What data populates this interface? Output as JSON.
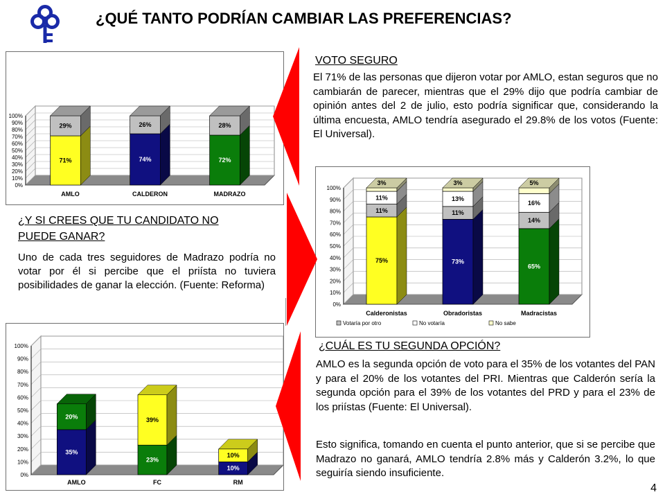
{
  "page": {
    "title": "¿QUÉ TANTO PODRÍAN CAMBIAR LAS PREFERENCIAS?",
    "page_number": "4",
    "colors": {
      "yellow": "#ffff22",
      "navy": "#101080",
      "green": "#0a7d0a",
      "grey": "#c0c0c0",
      "white": "#ffffff",
      "arrow": "#ff0000"
    }
  },
  "sections": {
    "voto_seguro": {
      "heading": "VOTO SEGURO",
      "text": "El 71% de las personas que dijeron votar por AMLO, estan seguros que no cambiarán de parecer, mientras que el 29% dijo que podría cambiar de opinión antes del 2 de julio, esto podría significar que, considerando la última encuesta, AMLO tendría asegurado el 29.8% de los votos (Fuente: El Universal)."
    },
    "no_puede_ganar": {
      "heading_line1": "¿Y SI CREES QUE TU CANDIDATO NO",
      "heading_line2": "PUEDE GANAR?",
      "text": "Uno de cada tres seguidores de Madrazo podría no votar por él si percibe que el priísta no tuviera posibilidades de ganar la elección. (Fuente: Reforma)"
    },
    "segunda_opcion": {
      "heading": "¿CUÁL ES TU SEGUNDA OPCIÓN?",
      "text1": "AMLO es la segunda opción de voto para el 35% de los votantes del PAN y para el 20% de los votantes del PRI. Mientras que Calderón sería la segunda opción para el 39% de los votantes del PRD y para el 23% de los priístas (Fuente: El Universal).",
      "text2": "Esto significa, tomando en cuenta el punto anterior, que si se percibe que Madrazo no ganará, AMLO tendría 2.8% más y Calderón 3.2%, lo que seguiría siendo insuficiente."
    }
  },
  "chart_data": [
    {
      "type": "bar",
      "stacked": true,
      "categories": [
        "AMLO",
        "CALDERON",
        "MADRAZO"
      ],
      "bottom_colors": [
        "#ffff22",
        "#101080",
        "#0a7d0a"
      ],
      "series": [
        {
          "values": [
            71,
            74,
            72
          ],
          "labels": [
            "71%",
            "74%",
            "72%"
          ]
        },
        {
          "values": [
            29,
            26,
            28
          ],
          "labels": [
            "29%",
            "26%",
            "28%"
          ],
          "color": "#c0c0c0"
        }
      ],
      "ylim": [
        0,
        100
      ],
      "yticks": [
        "0%",
        "10%",
        "20%",
        "30%",
        "40%",
        "50%",
        "60%",
        "70%",
        "80%",
        "90%",
        "100%"
      ]
    },
    {
      "type": "bar",
      "stacked": true,
      "categories": [
        "Calderonistas",
        "Obradoristas",
        "Madracistas"
      ],
      "bottom_colors": [
        "#ffff22",
        "#101080",
        "#0a7d0a"
      ],
      "series": [
        {
          "values": [
            75,
            73,
            65
          ],
          "labels": [
            "75%",
            "73%",
            "65%"
          ]
        },
        {
          "name": "Votaría por otro",
          "values": [
            11,
            11,
            14
          ],
          "labels": [
            "11%",
            "11%",
            "14%"
          ],
          "color": "#c0c0c0"
        },
        {
          "name": "No votaría",
          "values": [
            11,
            13,
            16
          ],
          "labels": [
            "11%",
            "13%",
            "16%"
          ],
          "color": "#ffffff"
        },
        {
          "name": "No sabe",
          "values": [
            3,
            3,
            5
          ],
          "labels": [
            "3%",
            "3%",
            "5%"
          ],
          "color": "#ffffcc"
        }
      ],
      "ylim": [
        0,
        100
      ],
      "yticks": [
        "0%",
        "10%",
        "20%",
        "30%",
        "40%",
        "50%",
        "60%",
        "70%",
        "80%",
        "90%",
        "100%"
      ],
      "legend": "bottom"
    },
    {
      "type": "bar",
      "stacked": true,
      "categories": [
        "AMLO",
        "FC",
        "RM"
      ],
      "series": [
        {
          "values": [
            35,
            23,
            10
          ],
          "labels": [
            "35%",
            "23%",
            "10%"
          ],
          "colors": [
            "#101080",
            "#0a7d0a",
            "#101080"
          ]
        },
        {
          "values": [
            20,
            39,
            10
          ],
          "labels": [
            "20%",
            "39%",
            "10%"
          ],
          "colors": [
            "#0a7d0a",
            "#ffff22",
            "#ffff22"
          ]
        }
      ],
      "ylim": [
        0,
        100
      ],
      "yticks": [
        "0%",
        "10%",
        "20%",
        "30%",
        "40%",
        "50%",
        "60%",
        "70%",
        "80%",
        "90%",
        "100%"
      ]
    }
  ]
}
